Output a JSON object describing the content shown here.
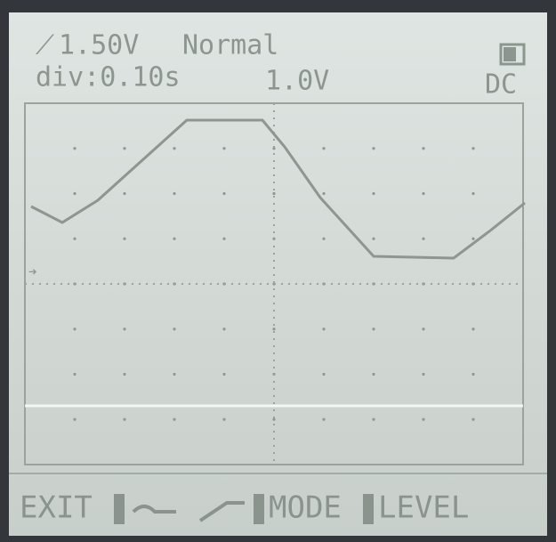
{
  "header": {
    "trigger_level": "1.50V",
    "trigger_mode": "Normal",
    "timebase": "div:0.10s",
    "volts_per_div": "1.0V",
    "coupling": "DC"
  },
  "menu": [
    "EXIT",
    "MODE",
    "LEVEL"
  ]
}
